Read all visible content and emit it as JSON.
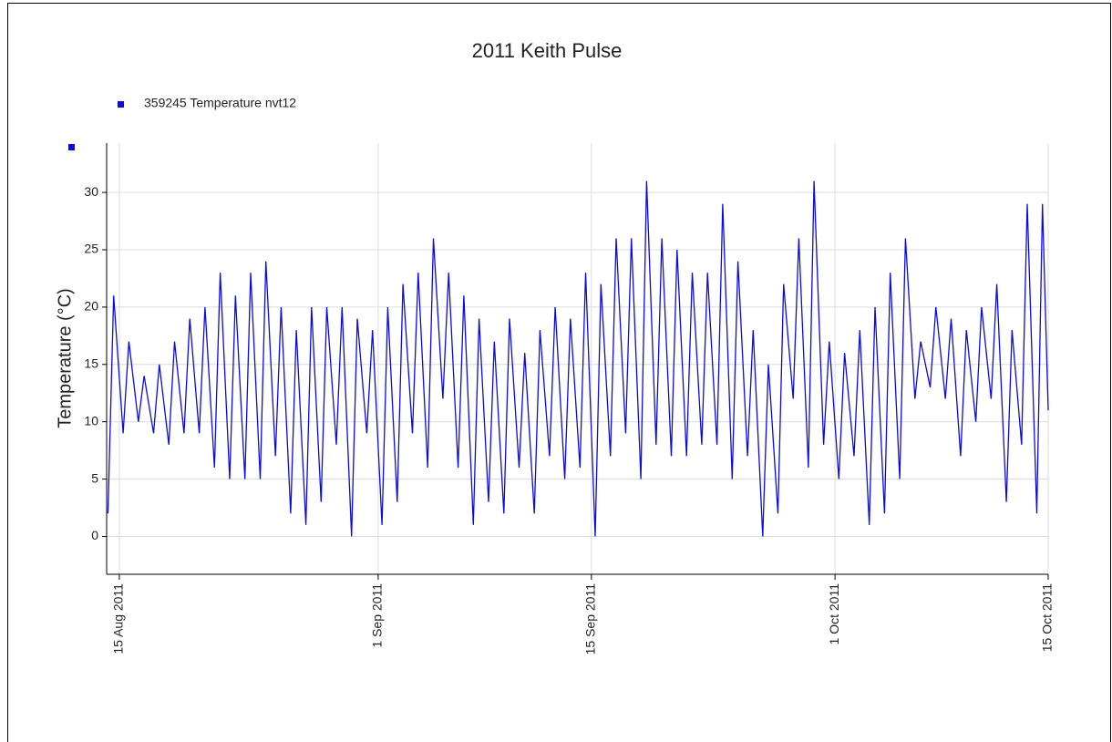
{
  "chart_data": {
    "type": "line",
    "title": "2011 Keith Pulse",
    "y_label": "Temperature (°C)",
    "series": [
      {
        "name": "359245  Temperature nvt12",
        "color": "#0a0ae6",
        "x": [
          "2011-08-14T06:00",
          "2011-08-14T15:00",
          "2011-08-15T06:00",
          "2011-08-15T15:00",
          "2011-08-16T06:00",
          "2011-08-16T15:00",
          "2011-08-17T06:00",
          "2011-08-17T15:00",
          "2011-08-18T06:00",
          "2011-08-18T15:00",
          "2011-08-19T06:00",
          "2011-08-19T15:00",
          "2011-08-20T06:00",
          "2011-08-20T15:00",
          "2011-08-21T06:00",
          "2011-08-21T15:00",
          "2011-08-22T06:00",
          "2011-08-22T15:00",
          "2011-08-23T06:00",
          "2011-08-23T15:00",
          "2011-08-24T06:00",
          "2011-08-24T15:00",
          "2011-08-25T06:00",
          "2011-08-25T15:00",
          "2011-08-26T06:00",
          "2011-08-26T15:00",
          "2011-08-27T06:00",
          "2011-08-27T15:00",
          "2011-08-28T06:00",
          "2011-08-28T15:00",
          "2011-08-29T06:00",
          "2011-08-29T15:00",
          "2011-08-30T06:00",
          "2011-08-30T15:00",
          "2011-08-31T06:00",
          "2011-08-31T15:00",
          "2011-09-01T06:00",
          "2011-09-01T15:00",
          "2011-09-02T06:00",
          "2011-09-02T15:00",
          "2011-09-03T06:00",
          "2011-09-03T15:00",
          "2011-09-04T06:00",
          "2011-09-04T15:00",
          "2011-09-05T06:00",
          "2011-09-05T15:00",
          "2011-09-06T06:00",
          "2011-09-06T15:00",
          "2011-09-07T06:00",
          "2011-09-07T15:00",
          "2011-09-08T06:00",
          "2011-09-08T15:00",
          "2011-09-09T06:00",
          "2011-09-09T15:00",
          "2011-09-10T06:00",
          "2011-09-10T15:00",
          "2011-09-11T06:00",
          "2011-09-11T15:00",
          "2011-09-12T06:00",
          "2011-09-12T15:00",
          "2011-09-13T06:00",
          "2011-09-13T15:00",
          "2011-09-14T06:00",
          "2011-09-14T15:00",
          "2011-09-15T06:00",
          "2011-09-15T15:00",
          "2011-09-16T06:00",
          "2011-09-16T15:00",
          "2011-09-17T06:00",
          "2011-09-17T15:00",
          "2011-09-18T06:00",
          "2011-09-18T15:00",
          "2011-09-19T06:00",
          "2011-09-19T15:00",
          "2011-09-20T06:00",
          "2011-09-20T15:00",
          "2011-09-21T06:00",
          "2011-09-21T15:00",
          "2011-09-22T06:00",
          "2011-09-22T15:00",
          "2011-09-23T06:00",
          "2011-09-23T15:00",
          "2011-09-24T06:00",
          "2011-09-24T15:00",
          "2011-09-25T06:00",
          "2011-09-25T15:00",
          "2011-09-26T06:00",
          "2011-09-26T15:00",
          "2011-09-27T06:00",
          "2011-09-27T15:00",
          "2011-09-28T06:00",
          "2011-09-28T15:00",
          "2011-09-29T06:00",
          "2011-09-29T15:00",
          "2011-09-30T06:00",
          "2011-09-30T15:00",
          "2011-10-01T06:00",
          "2011-10-01T15:00",
          "2011-10-02T06:00",
          "2011-10-02T15:00",
          "2011-10-03T06:00",
          "2011-10-03T15:00",
          "2011-10-04T06:00",
          "2011-10-04T15:00",
          "2011-10-05T06:00",
          "2011-10-05T15:00",
          "2011-10-06T06:00",
          "2011-10-06T15:00",
          "2011-10-07T06:00",
          "2011-10-07T15:00",
          "2011-10-08T06:00",
          "2011-10-08T15:00",
          "2011-10-09T06:00",
          "2011-10-09T15:00",
          "2011-10-10T06:00",
          "2011-10-10T15:00",
          "2011-10-11T06:00",
          "2011-10-11T15:00",
          "2011-10-12T06:00",
          "2011-10-12T15:00",
          "2011-10-13T06:00",
          "2011-10-13T15:00",
          "2011-10-14T06:00",
          "2011-10-14T15:00",
          "2011-10-15T00:00"
        ],
        "values": [
          2,
          21,
          9,
          17,
          10,
          14,
          9,
          15,
          8,
          17,
          9,
          19,
          9,
          20,
          6,
          23,
          5,
          21,
          5,
          23,
          5,
          24,
          7,
          20,
          2,
          18,
          1,
          20,
          3,
          20,
          8,
          20,
          0,
          19,
          9,
          18,
          1,
          20,
          3,
          22,
          9,
          23,
          6,
          26,
          12,
          23,
          6,
          21,
          1,
          19,
          3,
          17,
          2,
          19,
          6,
          16,
          2,
          18,
          7,
          20,
          5,
          19,
          6,
          23,
          0,
          22,
          7,
          26,
          9,
          26,
          5,
          31,
          8,
          26,
          7,
          25,
          7,
          23,
          8,
          23,
          8,
          29,
          5,
          24,
          7,
          18,
          0,
          15,
          2,
          22,
          12,
          26,
          6,
          31,
          8,
          17,
          5,
          16,
          7,
          18,
          1,
          20,
          2,
          23,
          5,
          26,
          12,
          17,
          13,
          20,
          12,
          19,
          7,
          18,
          10,
          20,
          12,
          22,
          3,
          18,
          8,
          29,
          2,
          29,
          11
        ]
      }
    ],
    "xlim": [
      "2011-08-14T04:00",
      "2011-10-15T00:00"
    ],
    "xticks": [
      {
        "value": "2011-08-15T00:00",
        "label": "15 Aug 2011"
      },
      {
        "value": "2011-09-01T00:00",
        "label": "1 Sep 2011"
      },
      {
        "value": "2011-09-15T00:00",
        "label": "15 Sep 2011"
      },
      {
        "value": "2011-10-01T00:00",
        "label": "1 Oct 2011"
      },
      {
        "value": "2011-10-15T00:00",
        "label": "15 Oct 2011"
      }
    ],
    "ylim": [
      -3.3,
      34.3
    ],
    "yticks": [
      0,
      5,
      10,
      15,
      20,
      25,
      30
    ],
    "grid": true
  }
}
